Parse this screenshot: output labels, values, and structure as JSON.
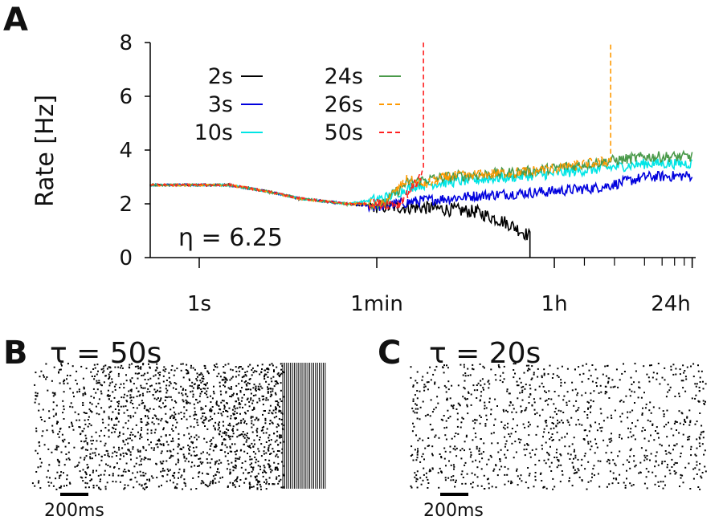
{
  "panels": {
    "a": "A",
    "b": "B",
    "c": "C"
  },
  "chart_data": [
    {
      "type": "line",
      "panel": "A",
      "ylabel": "Rate [Hz]",
      "annotation": "η = 6.25",
      "xscale": "log",
      "xlim_seconds": [
        0.32,
        86400
      ],
      "ylim": [
        0,
        8
      ],
      "xticks": [
        {
          "value": 1,
          "label": "1s"
        },
        {
          "value": 60,
          "label": "1min"
        },
        {
          "value": 3600,
          "label": "1h"
        },
        {
          "value": 86400,
          "label": "24h"
        }
      ],
      "yticks": [
        0,
        2,
        4,
        6,
        8
      ],
      "legend_placement": "top-left",
      "series": [
        {
          "name": "2s",
          "color": "#000000",
          "dash": false,
          "points": [
            [
              0.32,
              2.7
            ],
            [
              2,
              2.7
            ],
            [
              5,
              2.45
            ],
            [
              10,
              2.2
            ],
            [
              30,
              2.0
            ],
            [
              60,
              1.9
            ],
            [
              200,
              1.85
            ],
            [
              600,
              1.7
            ],
            [
              1200,
              1.3
            ],
            [
              2050,
              0.8
            ],
            [
              2050,
              0
            ]
          ]
        },
        {
          "name": "3s",
          "color": "#0000dd",
          "dash": false,
          "points": [
            [
              0.32,
              2.7
            ],
            [
              2,
              2.7
            ],
            [
              5,
              2.45
            ],
            [
              10,
              2.2
            ],
            [
              30,
              2.0
            ],
            [
              60,
              1.9
            ],
            [
              150,
              2.1
            ],
            [
              600,
              2.3
            ],
            [
              3000,
              2.45
            ],
            [
              10000,
              2.6
            ],
            [
              30000,
              3.0
            ],
            [
              86400,
              3.05
            ]
          ]
        },
        {
          "name": "10s",
          "color": "#00e5e5",
          "dash": false,
          "points": [
            [
              0.32,
              2.7
            ],
            [
              2,
              2.7
            ],
            [
              5,
              2.45
            ],
            [
              10,
              2.2
            ],
            [
              30,
              2.0
            ],
            [
              70,
              2.2
            ],
            [
              150,
              2.7
            ],
            [
              600,
              2.9
            ],
            [
              3000,
              3.1
            ],
            [
              10000,
              3.3
            ],
            [
              30000,
              3.5
            ],
            [
              86400,
              3.5
            ]
          ]
        },
        {
          "name": "24s",
          "color": "#4a9a4a",
          "dash": false,
          "points": [
            [
              0.32,
              2.7
            ],
            [
              2,
              2.7
            ],
            [
              5,
              2.45
            ],
            [
              10,
              2.2
            ],
            [
              30,
              2.0
            ],
            [
              70,
              2.0
            ],
            [
              120,
              2.8
            ],
            [
              300,
              3.0
            ],
            [
              2000,
              3.2
            ],
            [
              13200,
              3.6
            ],
            [
              30000,
              3.75
            ],
            [
              86400,
              3.75
            ]
          ]
        },
        {
          "name": "26s",
          "color": "#ff9900",
          "dash": true,
          "points": [
            [
              0.32,
              2.7
            ],
            [
              2,
              2.7
            ],
            [
              5,
              2.45
            ],
            [
              10,
              2.2
            ],
            [
              30,
              2.0
            ],
            [
              70,
              2.0
            ],
            [
              120,
              2.9
            ],
            [
              180,
              2.7
            ],
            [
              300,
              3.0
            ],
            [
              2000,
              3.2
            ],
            [
              13200,
              3.6
            ],
            [
              13200,
              8
            ]
          ]
        },
        {
          "name": "50s",
          "color": "#ff2020",
          "dash": true,
          "points": [
            [
              0.32,
              2.7
            ],
            [
              2,
              2.7
            ],
            [
              5,
              2.45
            ],
            [
              10,
              2.2
            ],
            [
              30,
              2.0
            ],
            [
              100,
              2.0
            ],
            [
              150,
              2.8
            ],
            [
              176,
              3.2
            ],
            [
              176,
              8
            ]
          ]
        }
      ]
    },
    {
      "type": "scatter",
      "panel": "B",
      "title": "τ = 50s",
      "scale_bar": "200ms"
    },
    {
      "type": "scatter",
      "panel": "C",
      "title": "τ = 20s",
      "scale_bar": "200ms"
    }
  ]
}
